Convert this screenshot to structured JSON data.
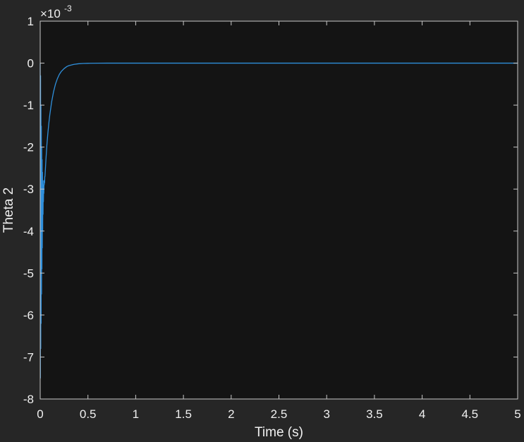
{
  "chart_data": {
    "type": "line",
    "title": "",
    "xlabel": "Time (s)",
    "ylabel": "Theta 2",
    "exponent_prefix": "×10",
    "exponent_value": "-3",
    "xlim": [
      0,
      5
    ],
    "ylim": [
      -8,
      1
    ],
    "xticks": [
      0,
      0.5,
      1,
      1.5,
      2,
      2.5,
      3,
      3.5,
      4,
      4.5,
      5
    ],
    "xtick_labels": [
      "0",
      "0.5",
      "1",
      "1.5",
      "2",
      "2.5",
      "3",
      "3.5",
      "4",
      "4.5",
      "5"
    ],
    "yticks": [
      1,
      0,
      -1,
      -2,
      -3,
      -4,
      -5,
      -6,
      -7,
      -8
    ],
    "ytick_labels": [
      "1",
      "0",
      "-1",
      "-2",
      "-3",
      "-4",
      "-5",
      "-6",
      "-7",
      "-8"
    ],
    "grid": false,
    "legend": "none",
    "colors": {
      "figure_bg": "#262626",
      "axes_bg": "#141414",
      "axis": "#c8c8c8",
      "text": "#f0f0f0",
      "line": "#2f8fdb"
    },
    "series": [
      {
        "x": [
          0,
          0.002,
          0.004,
          0.006,
          0.008,
          0.01,
          0.012,
          0.014,
          0.016,
          0.018,
          0.02,
          0.022,
          0.024,
          0.026,
          0.028,
          0.03,
          0.032,
          0.034,
          0.036,
          0.038,
          0.04,
          0.042,
          0.044,
          0.046,
          0.048,
          0.05,
          0.055,
          0.06,
          0.07,
          0.08,
          0.09,
          0.1,
          0.12,
          0.14,
          0.16,
          0.18,
          0.2,
          0.22,
          0.25,
          0.28,
          0.3,
          0.35,
          0.4,
          0.45,
          0.5,
          0.6,
          0.7,
          0.8,
          0.9,
          1.0,
          1.5,
          2,
          2.5,
          3,
          3.5,
          4,
          4.5,
          5
        ],
        "values": [
          0,
          -0.0075,
          -0.0003,
          -0.0068,
          -0.001,
          -0.0062,
          -0.0015,
          -0.0055,
          -0.002,
          -0.0049,
          -0.0023,
          -0.0044,
          -0.0026,
          -0.004,
          -0.0028,
          -0.0036,
          -0.0029,
          -0.0033,
          -0.0029,
          -0.0031,
          -0.0028,
          -0.0029,
          -0.0028,
          -0.00285,
          -0.0027,
          -0.0027,
          -0.0025,
          -0.0023,
          -0.00195,
          -0.00168,
          -0.00144,
          -0.00124,
          -0.00092,
          -0.00068,
          -0.0005,
          -0.00037,
          -0.00027,
          -0.0002,
          -0.00013,
          -8e-05,
          -6e-05,
          -3e-05,
          -1.5e-05,
          -8e-06,
          -4e-06,
          -1e-06,
          -3e-07,
          -1e-07,
          0,
          0,
          0,
          0,
          0,
          0,
          0,
          0,
          0,
          0
        ]
      }
    ]
  }
}
